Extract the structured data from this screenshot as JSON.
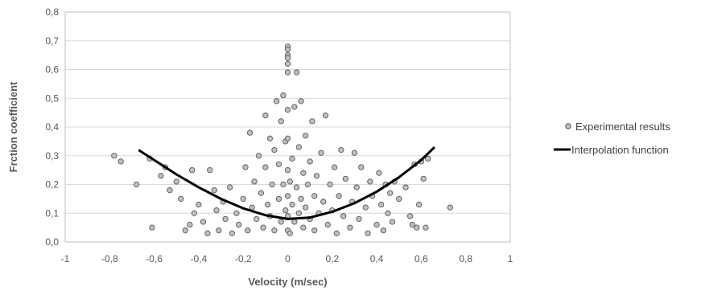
{
  "chart_data": {
    "type": "scatter",
    "title": "",
    "xlabel": "Velocity (m/sec)",
    "ylabel": "Frction coefficient",
    "xlim": [
      -1,
      1
    ],
    "ylim": [
      0,
      0.8
    ],
    "x_ticks": [
      "-1",
      "-0,8",
      "-0,6",
      "-0,4",
      "-0,2",
      "0",
      "0,2",
      "0,4",
      "0,6",
      "0,8",
      "1"
    ],
    "y_ticks": [
      "0,0",
      "0,1",
      "0,2",
      "0,3",
      "0,4",
      "0,5",
      "0,6",
      "0,7",
      "0,8"
    ],
    "grid": "horizontal",
    "legend_position": "right",
    "colors": {
      "marker_fill": "#bfbfbf",
      "marker_stroke": "#595959",
      "line": "#000000",
      "grid": "#d9d9d9"
    },
    "series": [
      {
        "name": "Experimental results",
        "kind": "scatter",
        "points": [
          [
            -0.78,
            0.3
          ],
          [
            -0.75,
            0.28
          ],
          [
            -0.68,
            0.2
          ],
          [
            -0.62,
            0.29
          ],
          [
            -0.61,
            0.05
          ],
          [
            -0.57,
            0.23
          ],
          [
            -0.55,
            0.26
          ],
          [
            -0.53,
            0.18
          ],
          [
            -0.5,
            0.21
          ],
          [
            -0.48,
            0.15
          ],
          [
            -0.46,
            0.04
          ],
          [
            -0.44,
            0.06
          ],
          [
            -0.43,
            0.25
          ],
          [
            -0.42,
            0.1
          ],
          [
            -0.4,
            0.13
          ],
          [
            -0.38,
            0.07
          ],
          [
            -0.36,
            0.03
          ],
          [
            -0.35,
            0.25
          ],
          [
            -0.33,
            0.18
          ],
          [
            -0.32,
            0.11
          ],
          [
            -0.31,
            0.04
          ],
          [
            -0.29,
            0.14
          ],
          [
            -0.28,
            0.08
          ],
          [
            -0.26,
            0.19
          ],
          [
            -0.25,
            0.03
          ],
          [
            -0.23,
            0.1
          ],
          [
            -0.22,
            0.06
          ],
          [
            -0.2,
            0.15
          ],
          [
            -0.19,
            0.26
          ],
          [
            -0.18,
            0.04
          ],
          [
            -0.17,
            0.38
          ],
          [
            -0.16,
            0.12
          ],
          [
            -0.15,
            0.21
          ],
          [
            -0.14,
            0.08
          ],
          [
            -0.13,
            0.3
          ],
          [
            -0.12,
            0.17
          ],
          [
            -0.11,
            0.05
          ],
          [
            -0.1,
            0.44
          ],
          [
            -0.1,
            0.26
          ],
          [
            -0.09,
            0.13
          ],
          [
            -0.08,
            0.36
          ],
          [
            -0.08,
            0.09
          ],
          [
            -0.07,
            0.2
          ],
          [
            -0.06,
            0.04
          ],
          [
            -0.06,
            0.32
          ],
          [
            -0.05,
            0.49
          ],
          [
            -0.04,
            0.15
          ],
          [
            -0.04,
            0.27
          ],
          [
            -0.03,
            0.07
          ],
          [
            -0.03,
            0.42
          ],
          [
            -0.02,
            0.2
          ],
          [
            -0.02,
            0.51
          ],
          [
            -0.01,
            0.11
          ],
          [
            -0.01,
            0.35
          ],
          [
            0.0,
            0.68
          ],
          [
            0.0,
            0.67
          ],
          [
            0.0,
            0.65
          ],
          [
            0.0,
            0.64
          ],
          [
            0.0,
            0.62
          ],
          [
            0.0,
            0.59
          ],
          [
            0.0,
            0.46
          ],
          [
            0.0,
            0.36
          ],
          [
            0.0,
            0.25
          ],
          [
            0.0,
            0.16
          ],
          [
            0.0,
            0.09
          ],
          [
            0.0,
            0.04
          ],
          [
            0.01,
            0.21
          ],
          [
            0.01,
            0.03
          ],
          [
            0.02,
            0.13
          ],
          [
            0.02,
            0.29
          ],
          [
            0.03,
            0.47
          ],
          [
            0.03,
            0.07
          ],
          [
            0.04,
            0.19
          ],
          [
            0.04,
            0.59
          ],
          [
            0.05,
            0.1
          ],
          [
            0.05,
            0.33
          ],
          [
            0.06,
            0.49
          ],
          [
            0.06,
            0.15
          ],
          [
            0.07,
            0.05
          ],
          [
            0.07,
            0.24
          ],
          [
            0.08,
            0.12
          ],
          [
            0.08,
            0.37
          ],
          [
            0.09,
            0.2
          ],
          [
            0.1,
            0.08
          ],
          [
            0.1,
            0.28
          ],
          [
            0.11,
            0.42
          ],
          [
            0.12,
            0.16
          ],
          [
            0.12,
            0.04
          ],
          [
            0.13,
            0.23
          ],
          [
            0.14,
            0.1
          ],
          [
            0.15,
            0.31
          ],
          [
            0.16,
            0.14
          ],
          [
            0.17,
            0.44
          ],
          [
            0.18,
            0.06
          ],
          [
            0.19,
            0.2
          ],
          [
            0.2,
            0.11
          ],
          [
            0.21,
            0.26
          ],
          [
            0.22,
            0.03
          ],
          [
            0.23,
            0.16
          ],
          [
            0.24,
            0.32
          ],
          [
            0.25,
            0.09
          ],
          [
            0.26,
            0.22
          ],
          [
            0.28,
            0.05
          ],
          [
            0.29,
            0.14
          ],
          [
            0.3,
            0.31
          ],
          [
            0.31,
            0.19
          ],
          [
            0.32,
            0.08
          ],
          [
            0.33,
            0.26
          ],
          [
            0.35,
            0.12
          ],
          [
            0.36,
            0.03
          ],
          [
            0.37,
            0.21
          ],
          [
            0.38,
            0.16
          ],
          [
            0.4,
            0.06
          ],
          [
            0.41,
            0.24
          ],
          [
            0.42,
            0.13
          ],
          [
            0.43,
            0.04
          ],
          [
            0.44,
            0.2
          ],
          [
            0.45,
            0.1
          ],
          [
            0.46,
            0.17
          ],
          [
            0.47,
            0.07
          ],
          [
            0.48,
            0.21
          ],
          [
            0.5,
            0.15
          ],
          [
            0.53,
            0.19
          ],
          [
            0.55,
            0.09
          ],
          [
            0.56,
            0.06
          ],
          [
            0.57,
            0.27
          ],
          [
            0.58,
            0.05
          ],
          [
            0.59,
            0.13
          ],
          [
            0.6,
            0.28
          ],
          [
            0.61,
            0.22
          ],
          [
            0.62,
            0.05
          ],
          [
            0.63,
            0.29
          ],
          [
            0.73,
            0.12
          ]
        ]
      },
      {
        "name": "Interpolation function",
        "kind": "line",
        "points": [
          [
            -0.67,
            0.32
          ],
          [
            -0.6,
            0.285
          ],
          [
            -0.5,
            0.235
          ],
          [
            -0.4,
            0.19
          ],
          [
            -0.3,
            0.15
          ],
          [
            -0.2,
            0.117
          ],
          [
            -0.1,
            0.093
          ],
          [
            0.0,
            0.08
          ],
          [
            0.1,
            0.085
          ],
          [
            0.2,
            0.105
          ],
          [
            0.3,
            0.135
          ],
          [
            0.4,
            0.175
          ],
          [
            0.5,
            0.225
          ],
          [
            0.6,
            0.285
          ],
          [
            0.66,
            0.33
          ]
        ]
      }
    ]
  }
}
